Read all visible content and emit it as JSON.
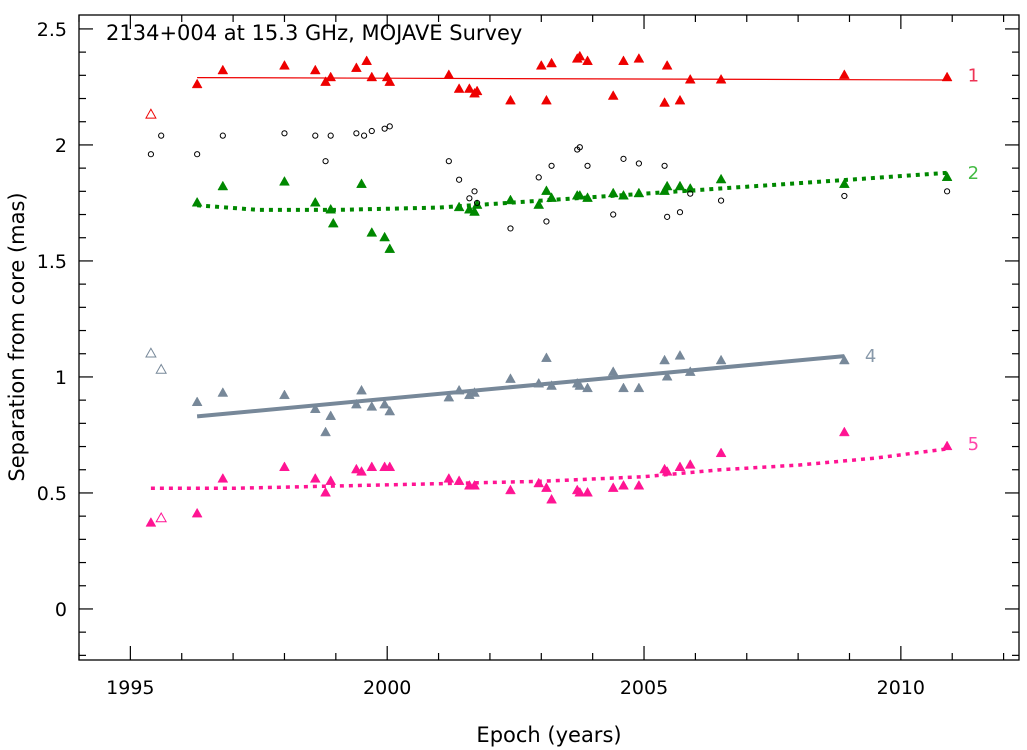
{
  "chart_data": {
    "type": "scatter",
    "title": "2134+004 at 15.3 GHz, MOJAVE Survey",
    "xlabel": "Epoch (years)",
    "ylabel": "Separation from core (mas)",
    "xlim": [
      1994.0,
      2012.3
    ],
    "ylim": [
      -0.22,
      2.56
    ],
    "x_ticks": [
      {
        "value": 1995,
        "label": "1995"
      },
      {
        "value": 2000,
        "label": "2000"
      },
      {
        "value": 2005,
        "label": "2005"
      },
      {
        "value": 2010,
        "label": "2010"
      }
    ],
    "y_ticks": [
      {
        "value": 0,
        "label": "0"
      },
      {
        "value": 0.5,
        "label": "0.5"
      },
      {
        "value": 1,
        "label": "1"
      },
      {
        "value": 1.5,
        "label": "1.5"
      },
      {
        "value": 2,
        "label": "2"
      },
      {
        "value": 2.5,
        "label": "2.5"
      }
    ],
    "colors": {
      "c1": "#ee0000",
      "c2": "#008800",
      "c4": "#778899",
      "c5": "#ff1493",
      "unassigned": "#000000",
      "c1_label": "#ee3355",
      "c2_label": "#44bb44",
      "c4_label": "#8899aa",
      "c5_label": "#ff44aa"
    },
    "series": [
      {
        "name": "1",
        "color": "c1",
        "label_color": "c1_label",
        "marker": "triangle-filled",
        "points": [
          [
            1996.3,
            2.26
          ],
          [
            1996.8,
            2.32
          ],
          [
            1998.0,
            2.34
          ],
          [
            1998.6,
            2.32
          ],
          [
            1998.8,
            2.27
          ],
          [
            1998.9,
            2.29
          ],
          [
            1999.4,
            2.33
          ],
          [
            1999.6,
            2.36
          ],
          [
            1999.7,
            2.29
          ],
          [
            2000.0,
            2.29
          ],
          [
            2000.05,
            2.27
          ],
          [
            2001.2,
            2.3
          ],
          [
            2001.4,
            2.24
          ],
          [
            2001.6,
            2.24
          ],
          [
            2001.7,
            2.22
          ],
          [
            2001.75,
            2.23
          ],
          [
            2002.4,
            2.19
          ],
          [
            2003.0,
            2.34
          ],
          [
            2003.1,
            2.19
          ],
          [
            2003.2,
            2.35
          ],
          [
            2003.7,
            2.37
          ],
          [
            2003.75,
            2.38
          ],
          [
            2003.9,
            2.36
          ],
          [
            2004.4,
            2.21
          ],
          [
            2004.6,
            2.36
          ],
          [
            2004.9,
            2.37
          ],
          [
            2005.4,
            2.18
          ],
          [
            2005.45,
            2.34
          ],
          [
            2005.7,
            2.19
          ],
          [
            2005.9,
            2.28
          ],
          [
            2006.5,
            2.28
          ],
          [
            2008.9,
            2.3
          ],
          [
            2010.9,
            2.29
          ]
        ],
        "fit": {
          "style": "solid",
          "width": 1.2,
          "x": [
            1996.3,
            2010.9
          ],
          "y": [
            2.29,
            2.28
          ]
        },
        "label": "1",
        "label_at": [
          2011.3,
          2.3
        ]
      },
      {
        "name": "1 (unfitted)",
        "color": "c1",
        "marker": "triangle-open",
        "points": [
          [
            1995.4,
            2.13
          ]
        ]
      },
      {
        "name": "2",
        "color": "c2",
        "label_color": "c2_label",
        "marker": "triangle-filled",
        "points": [
          [
            1996.3,
            1.75
          ],
          [
            1996.8,
            1.82
          ],
          [
            1998.0,
            1.84
          ],
          [
            1998.6,
            1.75
          ],
          [
            1998.9,
            1.72
          ],
          [
            1998.95,
            1.66
          ],
          [
            1999.5,
            1.83
          ],
          [
            1999.7,
            1.62
          ],
          [
            1999.95,
            1.6
          ],
          [
            2000.05,
            1.55
          ],
          [
            2001.4,
            1.73
          ],
          [
            2001.6,
            1.72
          ],
          [
            2001.7,
            1.71
          ],
          [
            2001.75,
            1.74
          ],
          [
            2002.4,
            1.76
          ],
          [
            2002.95,
            1.74
          ],
          [
            2003.1,
            1.8
          ],
          [
            2003.2,
            1.77
          ],
          [
            2003.7,
            1.78
          ],
          [
            2003.75,
            1.78
          ],
          [
            2003.9,
            1.77
          ],
          [
            2004.4,
            1.79
          ],
          [
            2004.6,
            1.78
          ],
          [
            2004.9,
            1.79
          ],
          [
            2005.4,
            1.8
          ],
          [
            2005.45,
            1.82
          ],
          [
            2005.7,
            1.82
          ],
          [
            2005.9,
            1.81
          ],
          [
            2006.5,
            1.85
          ],
          [
            2008.9,
            1.83
          ],
          [
            2010.9,
            1.86
          ]
        ],
        "fit": {
          "style": "dotted",
          "width": 4,
          "curve": [
            [
              1996.3,
              1.74
            ],
            [
              1997.5,
              1.72
            ],
            [
              1999.0,
              1.72
            ],
            [
              2001.0,
              1.73
            ],
            [
              2003.0,
              1.76
            ],
            [
              2005.0,
              1.79
            ],
            [
              2007.0,
              1.82
            ],
            [
              2009.0,
              1.85
            ],
            [
              2010.9,
              1.88
            ]
          ]
        },
        "label": "2",
        "label_at": [
          2011.3,
          1.88
        ]
      },
      {
        "name": "4",
        "color": "c4",
        "label_color": "c4_label",
        "marker": "triangle-filled",
        "points": [
          [
            1996.3,
            0.89
          ],
          [
            1996.8,
            0.93
          ],
          [
            1998.0,
            0.92
          ],
          [
            1998.6,
            0.86
          ],
          [
            1998.8,
            0.76
          ],
          [
            1998.9,
            0.83
          ],
          [
            1999.4,
            0.88
          ],
          [
            1999.5,
            0.94
          ],
          [
            1999.7,
            0.87
          ],
          [
            1999.95,
            0.88
          ],
          [
            2000.05,
            0.85
          ],
          [
            2001.2,
            0.91
          ],
          [
            2001.4,
            0.94
          ],
          [
            2001.6,
            0.92
          ],
          [
            2001.7,
            0.93
          ],
          [
            2002.4,
            0.99
          ],
          [
            2002.95,
            0.97
          ],
          [
            2003.1,
            1.08
          ],
          [
            2003.2,
            0.96
          ],
          [
            2003.7,
            0.97
          ],
          [
            2003.75,
            0.96
          ],
          [
            2003.9,
            0.95
          ],
          [
            2004.4,
            1.02
          ],
          [
            2004.6,
            0.95
          ],
          [
            2004.9,
            0.95
          ],
          [
            2005.4,
            1.07
          ],
          [
            2005.45,
            1.0
          ],
          [
            2005.7,
            1.09
          ],
          [
            2005.9,
            1.02
          ],
          [
            2006.5,
            1.07
          ],
          [
            2008.9,
            1.07
          ]
        ],
        "fit": {
          "style": "solid",
          "width": 4,
          "x": [
            1996.3,
            2008.9
          ],
          "y": [
            0.83,
            1.09
          ]
        },
        "label": "4",
        "label_at": [
          2009.3,
          1.09
        ]
      },
      {
        "name": "4 (unfitted)",
        "color": "c4",
        "marker": "triangle-open",
        "points": [
          [
            1995.4,
            1.1
          ],
          [
            1995.6,
            1.03
          ]
        ]
      },
      {
        "name": "5",
        "color": "c5",
        "label_color": "c5_label",
        "marker": "triangle-filled",
        "points": [
          [
            1995.4,
            0.37
          ],
          [
            1996.3,
            0.41
          ],
          [
            1996.8,
            0.56
          ],
          [
            1998.0,
            0.61
          ],
          [
            1998.6,
            0.56
          ],
          [
            1998.8,
            0.5
          ],
          [
            1998.9,
            0.55
          ],
          [
            1999.4,
            0.6
          ],
          [
            1999.5,
            0.59
          ],
          [
            1999.7,
            0.61
          ],
          [
            1999.95,
            0.61
          ],
          [
            2000.05,
            0.61
          ],
          [
            2001.2,
            0.56
          ],
          [
            2001.4,
            0.55
          ],
          [
            2001.6,
            0.53
          ],
          [
            2001.7,
            0.53
          ],
          [
            2002.4,
            0.51
          ],
          [
            2002.95,
            0.54
          ],
          [
            2003.1,
            0.52
          ],
          [
            2003.2,
            0.47
          ],
          [
            2003.7,
            0.51
          ],
          [
            2003.75,
            0.5
          ],
          [
            2003.9,
            0.5
          ],
          [
            2004.4,
            0.52
          ],
          [
            2004.6,
            0.53
          ],
          [
            2004.9,
            0.53
          ],
          [
            2005.4,
            0.6
          ],
          [
            2005.45,
            0.59
          ],
          [
            2005.7,
            0.61
          ],
          [
            2005.9,
            0.62
          ],
          [
            2006.5,
            0.67
          ],
          [
            2008.9,
            0.76
          ],
          [
            2010.9,
            0.7
          ]
        ],
        "fit": {
          "style": "dotted",
          "width": 3.5,
          "curve": [
            [
              1995.4,
              0.52
            ],
            [
              1997.0,
              0.52
            ],
            [
              1999.0,
              0.53
            ],
            [
              2001.0,
              0.54
            ],
            [
              2003.0,
              0.55
            ],
            [
              2005.0,
              0.57
            ],
            [
              2006.5,
              0.6
            ],
            [
              2008.0,
              0.62
            ],
            [
              2009.5,
              0.65
            ],
            [
              2010.9,
              0.69
            ]
          ]
        },
        "label": "5",
        "label_at": [
          2011.3,
          0.71
        ]
      },
      {
        "name": "5 (unfitted)",
        "color": "c5",
        "marker": "triangle-open",
        "points": [
          [
            1995.6,
            0.39
          ]
        ]
      },
      {
        "name": "unassigned",
        "color": "unassigned",
        "marker": "circle-open",
        "points": [
          [
            1995.4,
            1.96
          ],
          [
            1995.6,
            2.04
          ],
          [
            1996.3,
            1.96
          ],
          [
            1996.8,
            2.04
          ],
          [
            1998.0,
            2.05
          ],
          [
            1998.6,
            2.04
          ],
          [
            1998.8,
            1.93
          ],
          [
            1998.9,
            2.04
          ],
          [
            1999.4,
            2.05
          ],
          [
            1999.55,
            2.04
          ],
          [
            1999.7,
            2.06
          ],
          [
            1999.95,
            2.07
          ],
          [
            2000.05,
            2.08
          ],
          [
            2001.2,
            1.93
          ],
          [
            2001.4,
            1.85
          ],
          [
            2001.6,
            1.77
          ],
          [
            2001.7,
            1.8
          ],
          [
            2001.75,
            1.75
          ],
          [
            2002.4,
            1.64
          ],
          [
            2002.95,
            1.86
          ],
          [
            2003.1,
            1.67
          ],
          [
            2003.2,
            1.91
          ],
          [
            2003.7,
            1.98
          ],
          [
            2003.75,
            1.99
          ],
          [
            2003.9,
            1.91
          ],
          [
            2004.4,
            1.7
          ],
          [
            2004.6,
            1.94
          ],
          [
            2004.9,
            1.92
          ],
          [
            2005.4,
            1.91
          ],
          [
            2005.45,
            1.69
          ],
          [
            2005.7,
            1.71
          ],
          [
            2005.9,
            1.79
          ],
          [
            2006.5,
            1.76
          ],
          [
            2008.9,
            1.78
          ],
          [
            2010.9,
            1.8
          ]
        ]
      }
    ]
  }
}
